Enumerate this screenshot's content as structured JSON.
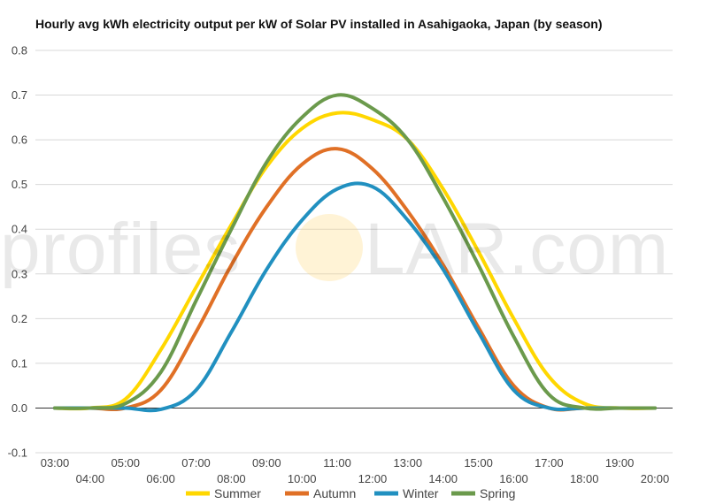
{
  "chart_data": {
    "type": "line",
    "title": "Hourly avg kWh electricity output per kW of Solar PV installed in Asahigaoka, Japan (by season)",
    "xlabel": "",
    "ylabel": "",
    "ylim": [
      -0.1,
      0.8
    ],
    "yticks": [
      "0.8",
      "0.7",
      "0.6",
      "0.5",
      "0.4",
      "0.3",
      "0.2",
      "0.1",
      "0.0",
      "-0.1"
    ],
    "x": [
      "03:00",
      "04:00",
      "05:00",
      "06:00",
      "07:00",
      "08:00",
      "09:00",
      "10:00",
      "11:00",
      "12:00",
      "13:00",
      "14:00",
      "15:00",
      "16:00",
      "17:00",
      "18:00",
      "19:00",
      "20:00"
    ],
    "grid": true,
    "legend_position": "bottom",
    "series": [
      {
        "name": "Summer",
        "color": "#FFD700",
        "values": [
          0.0,
          0.0,
          0.02,
          0.13,
          0.27,
          0.41,
          0.54,
          0.625,
          0.66,
          0.645,
          0.6,
          0.49,
          0.35,
          0.2,
          0.07,
          0.01,
          0.0,
          0.0
        ]
      },
      {
        "name": "Autumn",
        "color": "#E07026",
        "values": [
          0.0,
          0.0,
          0.0,
          0.04,
          0.17,
          0.32,
          0.45,
          0.545,
          0.58,
          0.535,
          0.44,
          0.32,
          0.18,
          0.05,
          0.0,
          0.0,
          0.0,
          0.0
        ]
      },
      {
        "name": "Winter",
        "color": "#2190C0",
        "values": [
          0.0,
          0.0,
          0.0,
          -0.003,
          0.04,
          0.17,
          0.31,
          0.42,
          0.49,
          0.495,
          0.42,
          0.31,
          0.17,
          0.04,
          0.0,
          0.0,
          0.0,
          0.0
        ]
      },
      {
        "name": "Spring",
        "color": "#6B9A4C",
        "values": [
          0.0,
          0.0,
          0.01,
          0.08,
          0.24,
          0.4,
          0.55,
          0.65,
          0.7,
          0.67,
          0.6,
          0.47,
          0.32,
          0.16,
          0.03,
          0.0,
          0.0,
          0.0
        ]
      }
    ]
  },
  "watermark": {
    "left": "profiles",
    "right": "LAR.com"
  }
}
